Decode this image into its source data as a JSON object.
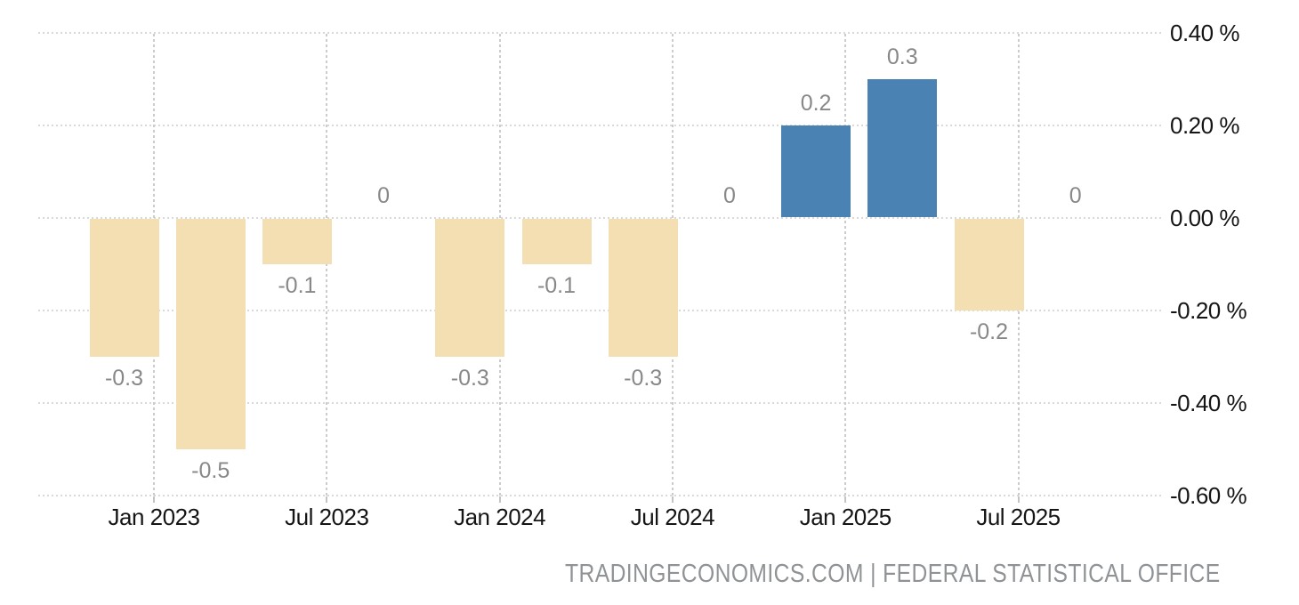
{
  "chart_data": {
    "type": "bar",
    "title": "",
    "unit": "%",
    "points": [
      {
        "period": "Q4 2022",
        "value": -0.3,
        "label": "-0.3"
      },
      {
        "period": "Q1 2023",
        "value": -0.5,
        "label": "-0.5"
      },
      {
        "period": "Q2 2023",
        "value": -0.1,
        "label": "-0.1"
      },
      {
        "period": "Q3 2023",
        "value": 0,
        "label": "0"
      },
      {
        "period": "Q4 2023",
        "value": -0.3,
        "label": "-0.3"
      },
      {
        "period": "Q1 2024",
        "value": -0.1,
        "label": "-0.1"
      },
      {
        "period": "Q2 2024",
        "value": -0.3,
        "label": "-0.3"
      },
      {
        "period": "Q3 2024",
        "value": 0,
        "label": "0"
      },
      {
        "period": "Q4 2024",
        "value": 0.2,
        "label": "0.2"
      },
      {
        "period": "Q1 2025",
        "value": 0.3,
        "label": "0.3"
      },
      {
        "period": "Q2 2025",
        "value": -0.2,
        "label": "-0.2"
      },
      {
        "period": "Q3 2025",
        "value": 0,
        "label": "0"
      }
    ],
    "x_tick_labels": [
      "Jan 2023",
      "Jul 2023",
      "Jan 2024",
      "Jul 2024",
      "Jan 2025",
      "Jul 2025"
    ],
    "y_ticks": [
      {
        "value": 0.4,
        "label": "0.40 %"
      },
      {
        "value": 0.2,
        "label": "0.20 %"
      },
      {
        "value": 0,
        "label": "0.00 %"
      },
      {
        "value": -0.2,
        "label": "-0.20 %"
      },
      {
        "value": -0.4,
        "label": "-0.40 %"
      },
      {
        "value": -0.6,
        "label": "-0.60 %"
      }
    ],
    "ylim": [
      -0.6,
      0.4
    ],
    "grid": true,
    "legend": "none",
    "colors": {
      "positive_bar": "#4A82B4",
      "negative_bar": "#F4DFB3",
      "value_label": "#888888",
      "grid_line": "#D9D9D9",
      "axis_label": "#151515",
      "attribution": "#8F9396"
    }
  },
  "attribution": "TRADINGECONOMICS.COM | FEDERAL STATISTICAL OFFICE"
}
